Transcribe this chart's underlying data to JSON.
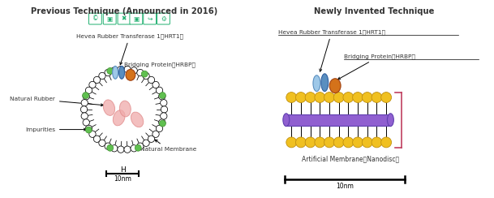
{
  "title_left": "Previous Technique (Announced in 2016)",
  "title_right": "Newly Invented Technique",
  "label_hrt1_left": "Hevea Rubber Transferase 1（HRT1）",
  "label_hrt1_right": "Hevea Rubber Transferase 1（HRT1）",
  "label_hrbp_left": "Bridging Protein（HRBP）",
  "label_hrbp_right": "Bridging Protein（HRBP）",
  "label_natural_rubber": "Natural Rubber",
  "label_impurities": "Impurities",
  "label_natural_membrane": "Natural Membrane",
  "label_artificial_membrane": "Artificial Membrane（Nanodisc）",
  "label_10nm_left": "10nm",
  "label_10nm_right": "10nm",
  "scale_h_left": "H",
  "color_orange": "#D4721A",
  "color_blue_light": "#9EC8E8",
  "color_blue_dark": "#5A8FC0",
  "color_green": "#60C050",
  "color_purple": "#9060D0",
  "color_pink_rubber": "#F0AAAA",
  "color_gold": "#F0C020",
  "color_gold_edge": "#C09010",
  "color_bracket": "#C04060",
  "color_icon": "#20B070",
  "bg_color": "#FFFFFF",
  "text_color": "#333333"
}
